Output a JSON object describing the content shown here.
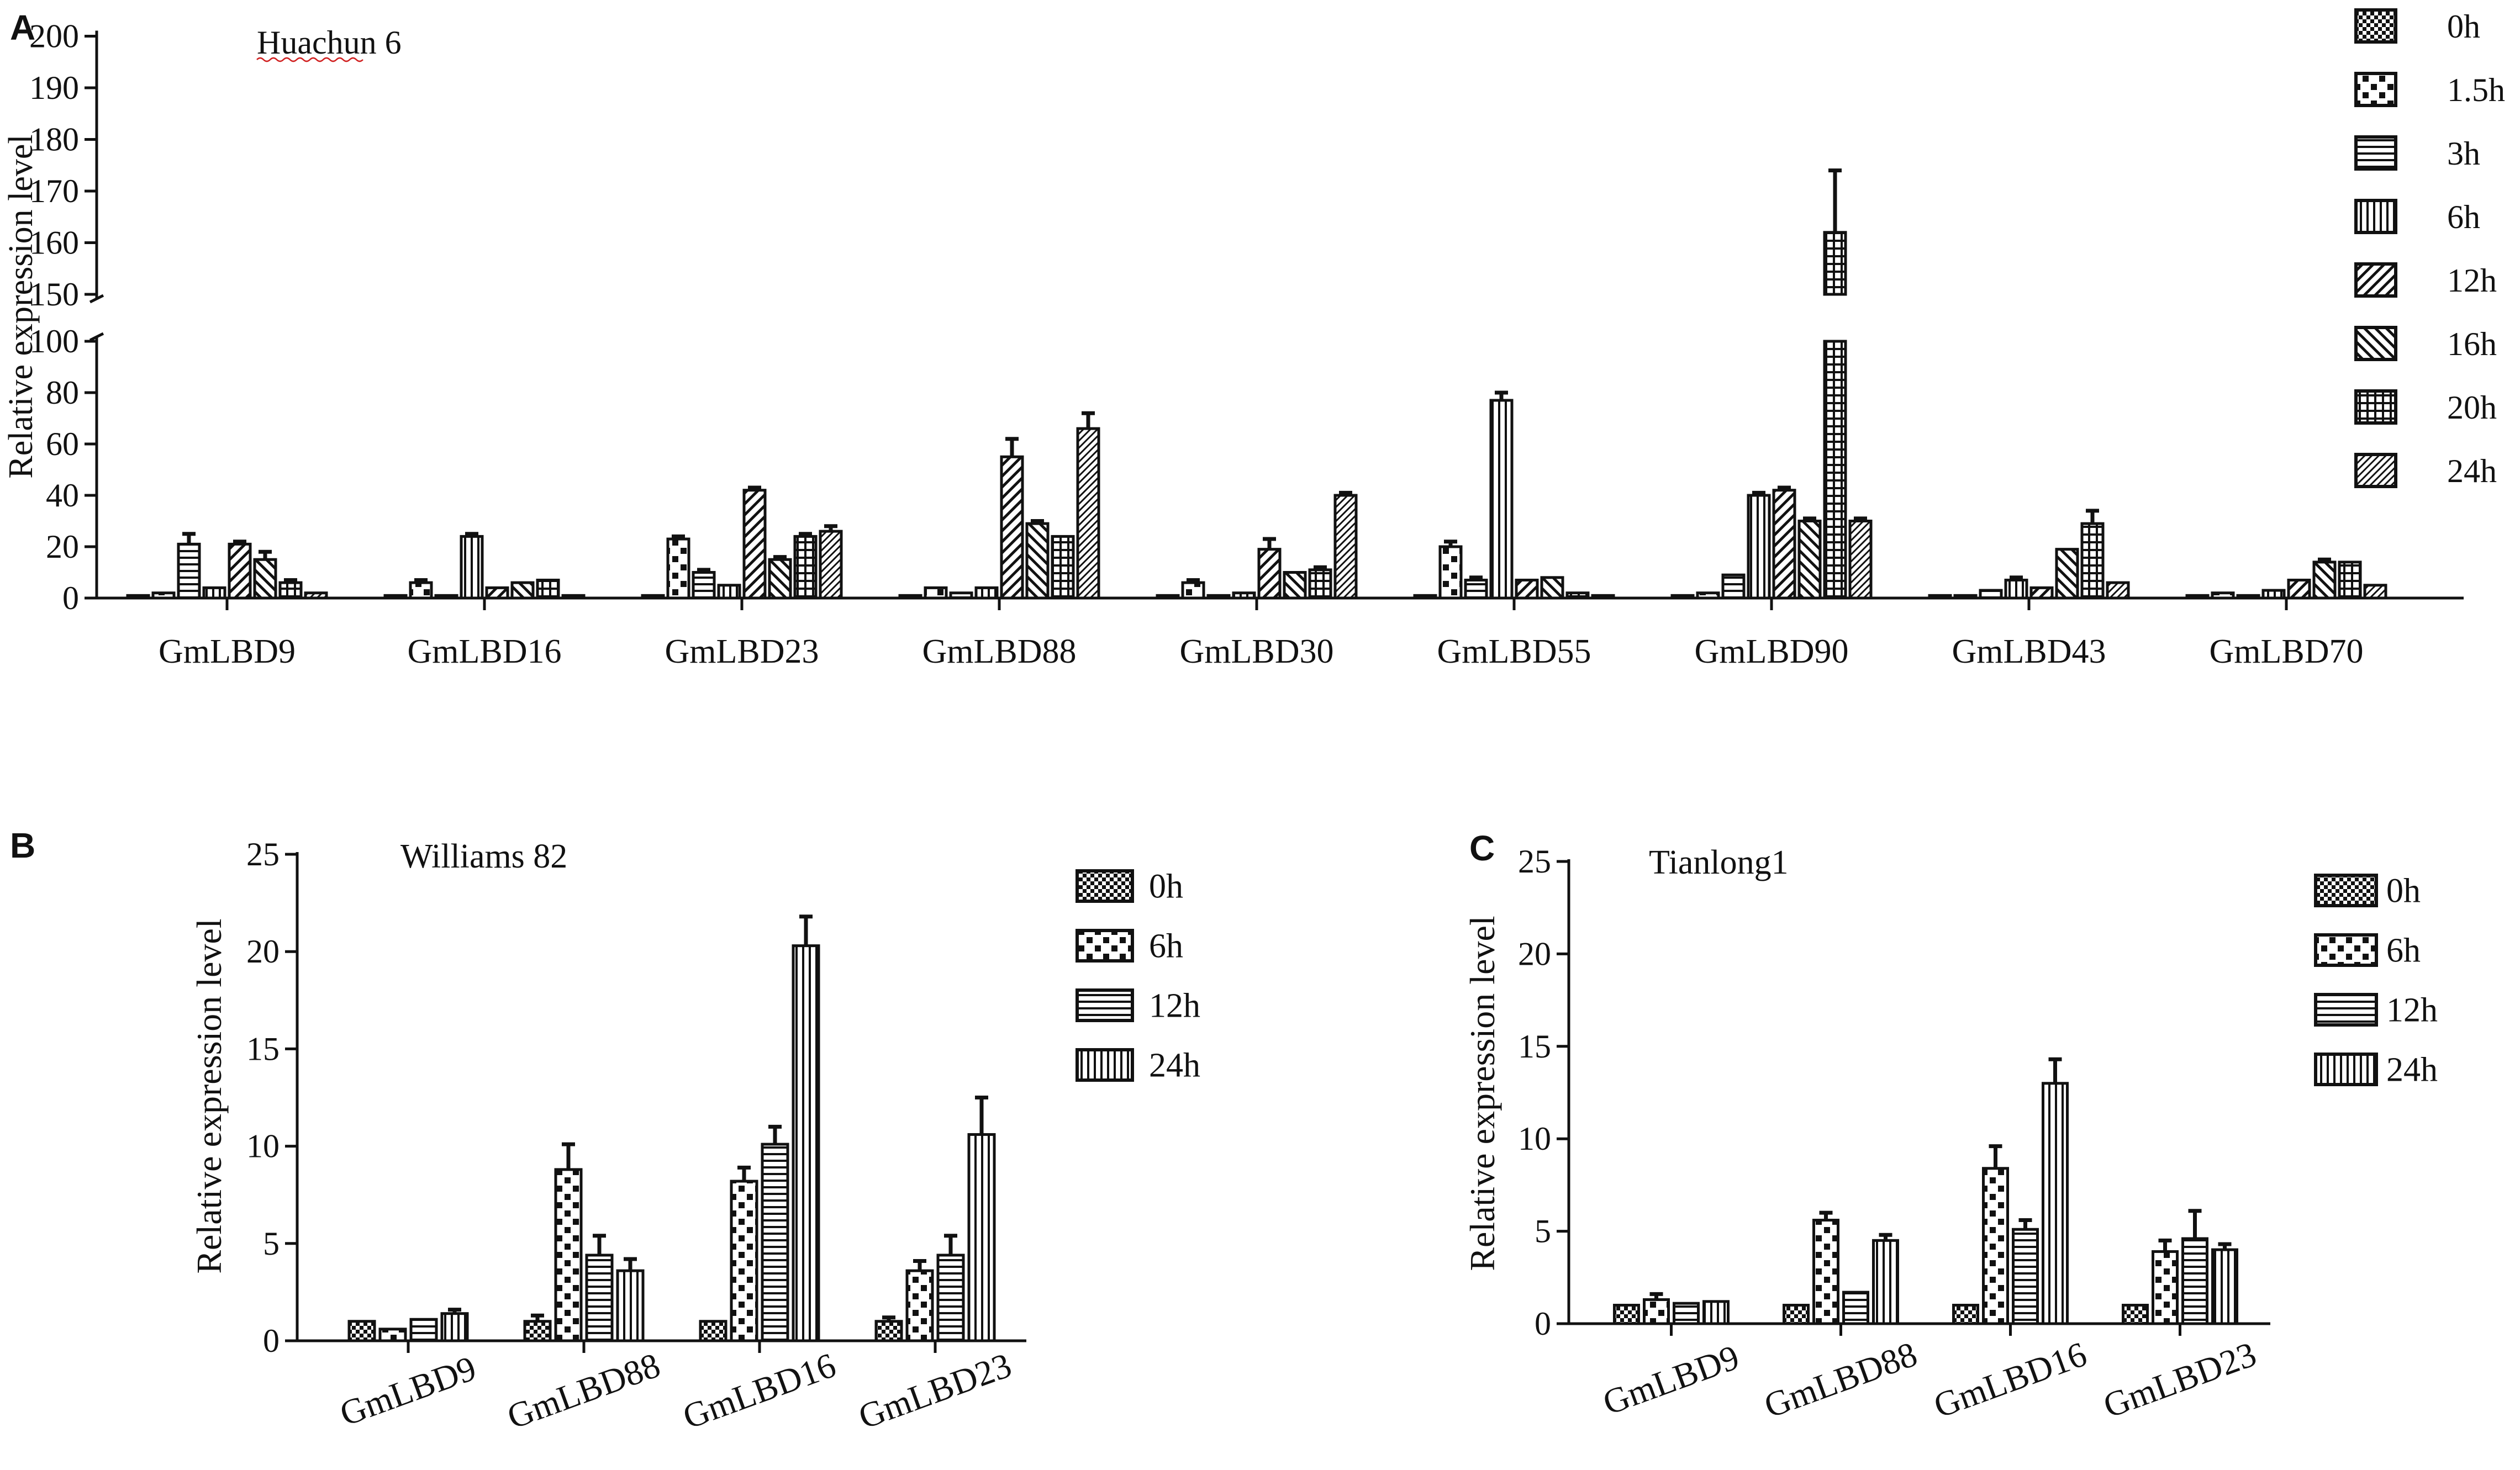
{
  "chart_data": [
    {
      "type": "bar",
      "panel_label": "A",
      "title": "Huachun 6",
      "xlabel": "",
      "ylabel": "Relative expression level",
      "ylim": [
        0,
        200
      ],
      "axis_break": [
        100,
        150
      ],
      "yticks_lower": [
        0,
        20,
        40,
        60,
        80,
        100
      ],
      "yticks_upper": [
        150,
        160,
        170,
        180,
        190,
        200
      ],
      "legend_position": "top-right",
      "categories": [
        "GmLBD9",
        "GmLBD16",
        "GmLBD23",
        "GmLBD88",
        "GmLBD30",
        "GmLBD55",
        "GmLBD90",
        "GmLBD43",
        "GmLBD70"
      ],
      "series": [
        {
          "name": "0h",
          "pattern": "fine-check",
          "values": [
            1,
            1,
            1,
            1,
            1,
            1,
            1,
            1,
            1
          ],
          "errors": [
            0,
            0,
            0,
            0,
            0,
            0,
            0,
            0,
            0
          ]
        },
        {
          "name": "1.5h",
          "pattern": "coarse-check",
          "values": [
            2,
            6,
            23,
            4,
            6,
            20,
            2,
            1,
            2
          ],
          "errors": [
            0,
            1,
            1,
            0,
            1,
            2,
            0,
            0,
            0
          ]
        },
        {
          "name": "3h",
          "pattern": "horizontal",
          "values": [
            21,
            1,
            10,
            2,
            1,
            7,
            9,
            3,
            1
          ],
          "errors": [
            4,
            0,
            1,
            0,
            0,
            1,
            0,
            0,
            0
          ]
        },
        {
          "name": "6h",
          "pattern": "vertical",
          "values": [
            4,
            24,
            5,
            4,
            2,
            77,
            40,
            7,
            3
          ],
          "errors": [
            0,
            1,
            0,
            0,
            0,
            3,
            1,
            1,
            0
          ]
        },
        {
          "name": "12h",
          "pattern": "diagonal-right",
          "values": [
            21,
            4,
            42,
            55,
            19,
            7,
            42,
            4,
            7
          ],
          "errors": [
            1,
            0,
            1,
            7,
            4,
            0,
            1,
            0,
            0
          ]
        },
        {
          "name": "16h",
          "pattern": "diagonal-left",
          "values": [
            15,
            6,
            15,
            29,
            10,
            8,
            30,
            19,
            14
          ],
          "errors": [
            3,
            0,
            1,
            1,
            0,
            0,
            1,
            0,
            1
          ]
        },
        {
          "name": "20h",
          "pattern": "grid",
          "values": [
            6,
            7,
            24,
            24,
            11,
            2,
            162,
            29,
            14
          ],
          "errors": [
            1,
            0,
            1,
            0,
            1,
            0,
            12,
            5,
            0
          ]
        },
        {
          "name": "24h",
          "pattern": "diagonal-dense",
          "values": [
            2,
            1,
            26,
            66,
            40,
            1,
            30,
            6,
            5
          ],
          "errors": [
            0,
            0,
            2,
            6,
            1,
            0,
            1,
            0,
            0
          ]
        }
      ]
    },
    {
      "type": "bar",
      "panel_label": "B",
      "title": "Williams 82",
      "xlabel": "",
      "ylabel": "Relative expression level",
      "ylim": [
        0,
        25
      ],
      "yticks": [
        0,
        5,
        10,
        15,
        20,
        25
      ],
      "legend_position": "top-right",
      "categories": [
        "GmLBD9",
        "GmLBD88",
        "GmLBD16",
        "GmLBD23"
      ],
      "series": [
        {
          "name": "0h",
          "pattern": "fine-check",
          "values": [
            1.0,
            1.0,
            1.0,
            1.0
          ],
          "errors": [
            0.0,
            0.3,
            0.0,
            0.2
          ]
        },
        {
          "name": "6h",
          "pattern": "coarse-check",
          "values": [
            0.6,
            8.8,
            8.2,
            3.6
          ],
          "errors": [
            0.0,
            1.3,
            0.7,
            0.5
          ]
        },
        {
          "name": "12h",
          "pattern": "horizontal",
          "values": [
            1.1,
            4.4,
            10.1,
            4.4
          ],
          "errors": [
            0.0,
            1.0,
            0.9,
            1.0
          ]
        },
        {
          "name": "24h",
          "pattern": "vertical",
          "values": [
            1.4,
            3.6,
            20.3,
            10.6
          ],
          "errors": [
            0.2,
            0.6,
            1.5,
            1.9
          ]
        }
      ]
    },
    {
      "type": "bar",
      "panel_label": "C",
      "title": "Tianlong1",
      "xlabel": "",
      "ylabel": "Relative expression level",
      "ylim": [
        0,
        25
      ],
      "yticks": [
        0,
        5,
        10,
        15,
        20,
        25
      ],
      "legend_position": "top-right",
      "categories": [
        "GmLBD9",
        "GmLBD88",
        "GmLBD16",
        "GmLBD23"
      ],
      "series": [
        {
          "name": "0h",
          "pattern": "fine-check",
          "values": [
            1.0,
            1.0,
            1.0,
            1.0
          ],
          "errors": [
            0.0,
            0.0,
            0.0,
            0.0
          ]
        },
        {
          "name": "6h",
          "pattern": "coarse-check",
          "values": [
            1.3,
            5.6,
            8.4,
            3.9
          ],
          "errors": [
            0.3,
            0.4,
            1.2,
            0.6
          ]
        },
        {
          "name": "12h",
          "pattern": "horizontal",
          "values": [
            1.1,
            1.7,
            5.1,
            4.6
          ],
          "errors": [
            0.0,
            0.0,
            0.5,
            1.5
          ]
        },
        {
          "name": "24h",
          "pattern": "vertical",
          "values": [
            1.2,
            4.5,
            13.0,
            4.0
          ],
          "errors": [
            0.0,
            0.3,
            1.3,
            0.3
          ]
        }
      ]
    }
  ]
}
